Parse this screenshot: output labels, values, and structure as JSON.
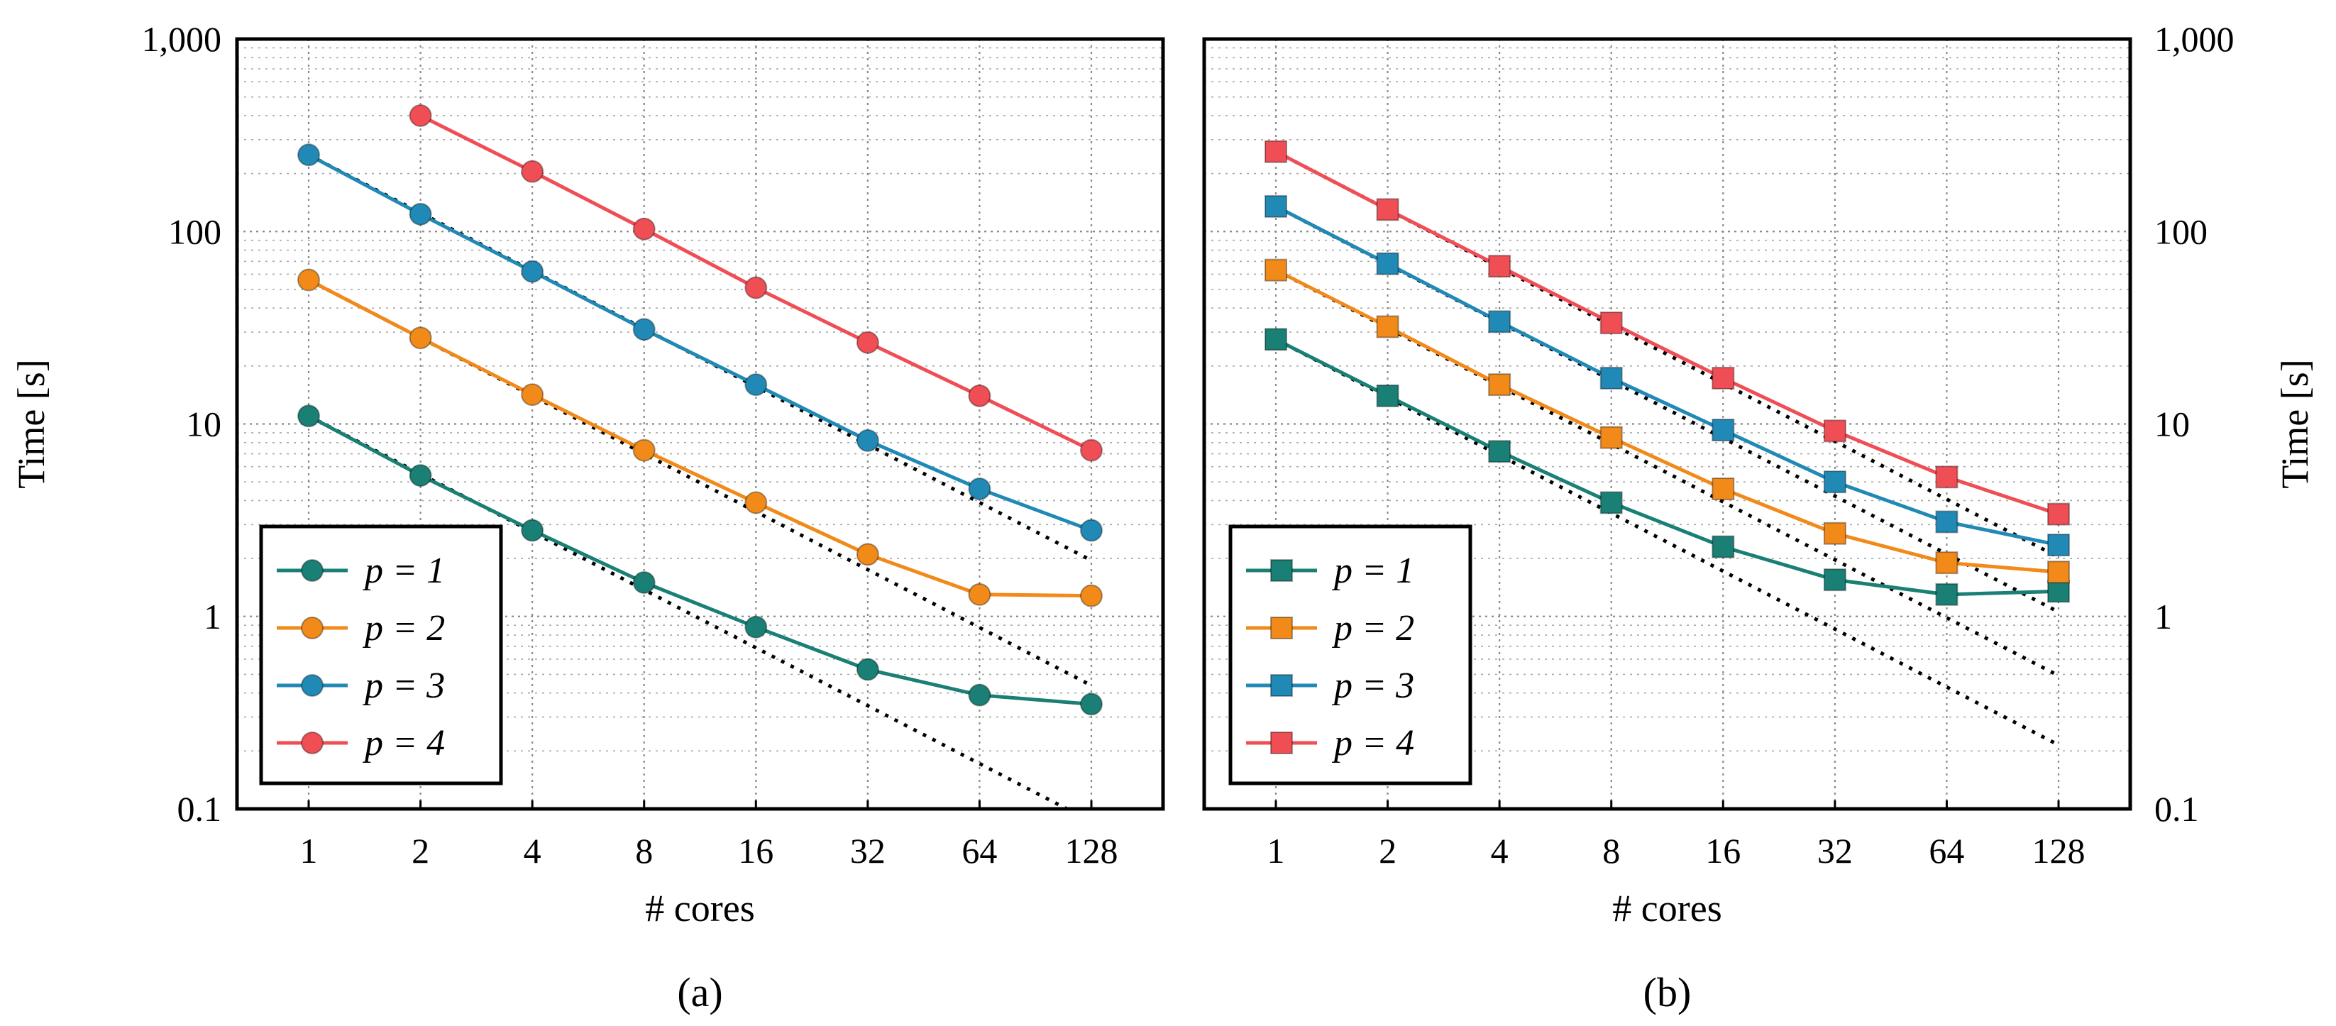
{
  "chart_data": [
    {
      "type": "line",
      "panel_label": "(a)",
      "xlabel": "# cores",
      "ylabel": "Time [s]",
      "xscale": "log2",
      "yscale": "log10",
      "categories": [
        "1",
        "2",
        "4",
        "8",
        "16",
        "32",
        "64",
        "128"
      ],
      "x": [
        1,
        2,
        4,
        8,
        16,
        32,
        64,
        128
      ],
      "ylim": [
        0.1,
        1000
      ],
      "yticks": [
        0.1,
        1,
        10,
        100,
        1000
      ],
      "ytick_labels": [
        "0.1",
        "1",
        "10",
        "100",
        "1,000"
      ],
      "y_axis_side": "left",
      "grid": true,
      "marker": "circle",
      "legend_position": "bottom-left",
      "series": [
        {
          "name": "p = 1",
          "color": "#1a7f74",
          "values": [
            11,
            5.4,
            2.8,
            1.5,
            0.88,
            0.53,
            0.39,
            0.35
          ]
        },
        {
          "name": "p = 2",
          "color": "#f28a1a",
          "values": [
            56,
            28,
            14.2,
            7.3,
            3.9,
            2.1,
            1.3,
            1.28
          ]
        },
        {
          "name": "p = 3",
          "color": "#2189b5",
          "values": [
            250,
            123,
            62,
            31,
            16,
            8.2,
            4.6,
            2.8
          ]
        },
        {
          "name": "p = 4",
          "color": "#f04e55",
          "values": [
            null,
            400,
            205,
            103,
            51,
            26.5,
            14,
            7.3
          ]
        }
      ],
      "ideal_scaling": [
        {
          "name": "ideal p = 1",
          "start_x": 1,
          "start_y": 11
        },
        {
          "name": "ideal p = 2",
          "start_x": 1,
          "start_y": 56
        },
        {
          "name": "ideal p = 3",
          "start_x": 1,
          "start_y": 250
        }
      ]
    },
    {
      "type": "line",
      "panel_label": "(b)",
      "xlabel": "# cores",
      "ylabel": "Time [s]",
      "xscale": "log2",
      "yscale": "log10",
      "categories": [
        "1",
        "2",
        "4",
        "8",
        "16",
        "32",
        "64",
        "128"
      ],
      "x": [
        1,
        2,
        4,
        8,
        16,
        32,
        64,
        128
      ],
      "ylim": [
        0.1,
        1000
      ],
      "yticks": [
        0.1,
        1,
        10,
        100,
        1000
      ],
      "ytick_labels": [
        "0.1",
        "1",
        "10",
        "100",
        "1,000"
      ],
      "y_axis_side": "right",
      "grid": true,
      "marker": "square",
      "legend_position": "bottom-left",
      "series": [
        {
          "name": "p = 1",
          "color": "#1a7f74",
          "values": [
            27.5,
            14,
            7.2,
            3.9,
            2.3,
            1.55,
            1.3,
            1.35
          ]
        },
        {
          "name": "p = 2",
          "color": "#f28a1a",
          "values": [
            63,
            32,
            16,
            8.5,
            4.6,
            2.7,
            1.9,
            1.7
          ]
        },
        {
          "name": "p = 3",
          "color": "#2189b5",
          "values": [
            135,
            68,
            34,
            17.3,
            9.3,
            5.0,
            3.1,
            2.35
          ]
        },
        {
          "name": "p = 4",
          "color": "#f04e55",
          "values": [
            260,
            130,
            66,
            33.5,
            17.3,
            9.2,
            5.3,
            3.4
          ]
        }
      ],
      "ideal_scaling": [
        {
          "name": "ideal p = 1",
          "start_x": 1,
          "start_y": 27.5
        },
        {
          "name": "ideal p = 2",
          "start_x": 1,
          "start_y": 63
        },
        {
          "name": "ideal p = 3",
          "start_x": 1,
          "start_y": 135
        },
        {
          "name": "ideal p = 4",
          "start_x": 1,
          "start_y": 260
        }
      ]
    }
  ]
}
